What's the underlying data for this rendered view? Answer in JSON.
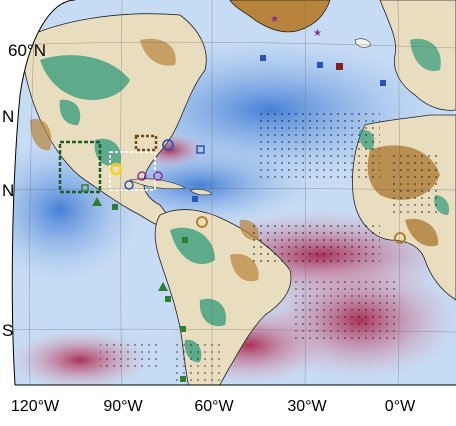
{
  "map": {
    "lat_labels": [
      "60°N",
      "N",
      "N",
      "S"
    ],
    "lon_labels": [
      "120°W",
      "90°W",
      "60°W",
      "30°W",
      "0°W"
    ],
    "colors": {
      "ocean_warm": "#b4284e",
      "ocean_cool": "#3d7fd6",
      "land_wet": "#1f8a70",
      "land_dry": "#a8742e",
      "neutral": "#f4f1ea"
    },
    "markers": [
      {
        "shape": "square",
        "color": "#2a55b8"
      },
      {
        "shape": "square",
        "color": "#8b1a1a"
      },
      {
        "shape": "star",
        "color": "#8c2f9b"
      },
      {
        "shape": "circle",
        "color": "#2a55b8"
      },
      {
        "shape": "circle",
        "color": "#b07a1a"
      },
      {
        "shape": "circle",
        "color": "#f2d21b"
      },
      {
        "shape": "triangle",
        "color": "#2e7d32"
      },
      {
        "shape": "square",
        "color": "#2e7d32"
      }
    ]
  }
}
